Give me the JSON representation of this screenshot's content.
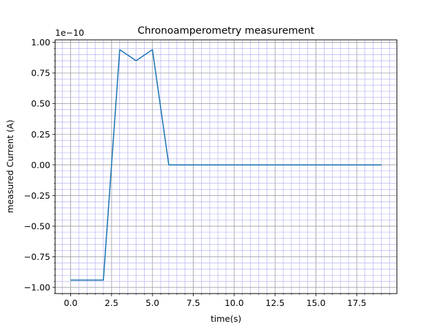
{
  "chart_data": {
    "type": "line",
    "title": "Chronoamperometry measurement",
    "xlabel": "time(s)",
    "ylabel": "measured Current (A)",
    "y_offset_text": "1e−10",
    "xlim": [
      -0.95,
      19.95
    ],
    "ylim": [
      -1.05,
      1.02
    ],
    "y_scale_factor": 1e-10,
    "x_ticks": [
      0,
      2.5,
      5,
      7.5,
      10,
      12.5,
      15,
      17.5
    ],
    "x_tick_labels": [
      "0.0",
      "2.5",
      "5.0",
      "7.5",
      "10.0",
      "12.5",
      "15.0",
      "17.5"
    ],
    "y_ticks": [
      -1,
      -0.75,
      -0.5,
      -0.25,
      0,
      0.25,
      0.5,
      0.75,
      1
    ],
    "y_tick_labels": [
      "−1.00",
      "−0.75",
      "−0.50",
      "−0.25",
      "0.00",
      "0.25",
      "0.50",
      "0.75",
      "1.00"
    ],
    "grid": true,
    "minor_grid": true,
    "line_color": "#1f77b4",
    "major_grid_color": "#a0a0a0",
    "minor_grid_color": "#a8a8f0",
    "series": [
      {
        "x": [
          0,
          1,
          2,
          3,
          4,
          5,
          6,
          7,
          8,
          9,
          10,
          11,
          12,
          13,
          14,
          15,
          16,
          17,
          18,
          19
        ],
        "y": [
          -0.94,
          -0.94,
          -0.94,
          0.94,
          0.85,
          0.94,
          0,
          0,
          0,
          0,
          0,
          0,
          0,
          0,
          0,
          0,
          0,
          0,
          0,
          0
        ]
      }
    ]
  }
}
